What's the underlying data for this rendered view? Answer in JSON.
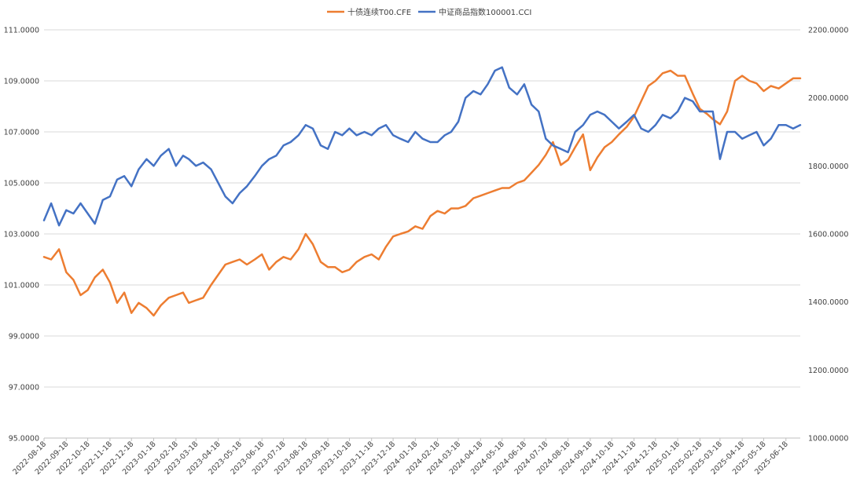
{
  "chart_data": {
    "type": "line",
    "title": "",
    "legend_position": "top",
    "grid": "horizontal",
    "y_left": {
      "ticks": [
        "111.0000",
        "109.0000",
        "107.0000",
        "105.0000",
        "103.0000",
        "101.0000",
        "99.0000",
        "97.0000",
        "95.0000"
      ],
      "min": 95,
      "max": 111
    },
    "y_right": {
      "ticks": [
        "2200.0000",
        "2000.0000",
        "1800.0000",
        "1600.0000",
        "1400.0000",
        "1200.0000",
        "1000.0000"
      ],
      "min": 1000,
      "max": 2200
    },
    "x_tick_labels": [
      "2022-08-18",
      "2022-09-18",
      "2022-10-18",
      "2022-11-18",
      "2022-12-18",
      "2023-01-18",
      "2023-02-18",
      "2023-03-18",
      "2023-04-18",
      "2023-05-18",
      "2023-06-18",
      "2023-07-18",
      "2023-08-18",
      "2023-09-18",
      "2023-10-18",
      "2023-11-18",
      "2023-12-18",
      "2024-01-18",
      "2024-02-18",
      "2024-03-18",
      "2024-04-18",
      "2024-05-18",
      "2024-06-18",
      "2024-07-18",
      "2024-08-18",
      "2024-09-18",
      "2024-10-18",
      "2024-11-18",
      "2024-12-18",
      "2025-01-18",
      "2025-02-18",
      "2025-03-18",
      "2025-04-18",
      "2025-05-18",
      "2025-06-18"
    ],
    "series": [
      {
        "name": "十债连续T00.CFE",
        "axis": "left",
        "color": "#ED7D31",
        "x": [
          "2022-08-18",
          "2022-08-28",
          "2022-09-08",
          "2022-09-18",
          "2022-09-28",
          "2022-10-08",
          "2022-10-18",
          "2022-10-28",
          "2022-11-08",
          "2022-11-18",
          "2022-11-28",
          "2022-12-08",
          "2022-12-18",
          "2022-12-28",
          "2023-01-08",
          "2023-01-18",
          "2023-01-28",
          "2023-02-08",
          "2023-02-18",
          "2023-02-28",
          "2023-03-08",
          "2023-03-18",
          "2023-03-28",
          "2023-04-08",
          "2023-04-18",
          "2023-04-28",
          "2023-05-08",
          "2023-05-18",
          "2023-05-28",
          "2023-06-08",
          "2023-06-18",
          "2023-06-28",
          "2023-07-08",
          "2023-07-18",
          "2023-07-28",
          "2023-08-08",
          "2023-08-18",
          "2023-08-28",
          "2023-09-08",
          "2023-09-18",
          "2023-09-28",
          "2023-10-08",
          "2023-10-18",
          "2023-10-28",
          "2023-11-08",
          "2023-11-18",
          "2023-11-28",
          "2023-12-08",
          "2023-12-18",
          "2023-12-28",
          "2024-01-08",
          "2024-01-18",
          "2024-01-28",
          "2024-02-08",
          "2024-02-18",
          "2024-02-28",
          "2024-03-08",
          "2024-03-18",
          "2024-03-28",
          "2024-04-08",
          "2024-04-18",
          "2024-04-28",
          "2024-05-08",
          "2024-05-18",
          "2024-05-28",
          "2024-06-08",
          "2024-06-18",
          "2024-06-28",
          "2024-07-08",
          "2024-07-18",
          "2024-07-28",
          "2024-08-08",
          "2024-08-18",
          "2024-08-28",
          "2024-09-08",
          "2024-09-18",
          "2024-09-28",
          "2024-10-08",
          "2024-10-18",
          "2024-10-28",
          "2024-11-08",
          "2024-11-18",
          "2024-11-28",
          "2024-12-08",
          "2024-12-18",
          "2024-12-28",
          "2025-01-08",
          "2025-01-18",
          "2025-01-28",
          "2025-02-08",
          "2025-02-18",
          "2025-02-28",
          "2025-03-08",
          "2025-03-18",
          "2025-03-28",
          "2025-04-08",
          "2025-04-18",
          "2025-04-28",
          "2025-05-08",
          "2025-05-18",
          "2025-05-28",
          "2025-06-08",
          "2025-06-18",
          "2025-06-28",
          "2025-07-08"
        ],
        "values": [
          102.1,
          102.0,
          102.4,
          101.5,
          101.2,
          100.6,
          100.8,
          101.3,
          101.6,
          101.1,
          100.3,
          100.7,
          99.9,
          100.3,
          100.1,
          99.8,
          100.2,
          100.5,
          100.6,
          100.7,
          100.3,
          100.4,
          100.5,
          101.0,
          101.4,
          101.8,
          101.9,
          102.0,
          101.8,
          102.0,
          102.2,
          101.6,
          101.9,
          102.1,
          102.0,
          102.4,
          103.0,
          102.6,
          101.9,
          101.7,
          101.7,
          101.5,
          101.6,
          101.9,
          102.1,
          102.2,
          102.0,
          102.5,
          102.9,
          103.0,
          103.1,
          103.3,
          103.2,
          103.7,
          103.9,
          103.8,
          104.0,
          104.0,
          104.1,
          104.4,
          104.5,
          104.6,
          104.7,
          104.8,
          104.8,
          105.0,
          105.1,
          105.4,
          105.7,
          106.1,
          106.6,
          105.7,
          105.9,
          106.4,
          106.9,
          105.5,
          106.0,
          106.4,
          106.6,
          106.9,
          107.2,
          107.6,
          108.2,
          108.8,
          109.0,
          109.3,
          109.4,
          109.2,
          109.2,
          108.5,
          107.9,
          107.7,
          107.5,
          107.3,
          107.8,
          109.0,
          109.2,
          109.0,
          108.9,
          108.6,
          108.8,
          108.7,
          108.9,
          109.1,
          109.1
        ]
      },
      {
        "name": "中证商品指数100001.CCI",
        "axis": "right",
        "color": "#4472C4",
        "x": [
          "2022-08-18",
          "2022-08-28",
          "2022-09-08",
          "2022-09-18",
          "2022-09-28",
          "2022-10-08",
          "2022-10-18",
          "2022-10-28",
          "2022-11-08",
          "2022-11-18",
          "2022-11-28",
          "2022-12-08",
          "2022-12-18",
          "2022-12-28",
          "2023-01-08",
          "2023-01-18",
          "2023-01-28",
          "2023-02-08",
          "2023-02-18",
          "2023-02-28",
          "2023-03-08",
          "2023-03-18",
          "2023-03-28",
          "2023-04-08",
          "2023-04-18",
          "2023-04-28",
          "2023-05-08",
          "2023-05-18",
          "2023-05-28",
          "2023-06-08",
          "2023-06-18",
          "2023-06-28",
          "2023-07-08",
          "2023-07-18",
          "2023-07-28",
          "2023-08-08",
          "2023-08-18",
          "2023-08-28",
          "2023-09-08",
          "2023-09-18",
          "2023-09-28",
          "2023-10-08",
          "2023-10-18",
          "2023-10-28",
          "2023-11-08",
          "2023-11-18",
          "2023-11-28",
          "2023-12-08",
          "2023-12-18",
          "2023-12-28",
          "2024-01-08",
          "2024-01-18",
          "2024-01-28",
          "2024-02-08",
          "2024-02-18",
          "2024-02-28",
          "2024-03-08",
          "2024-03-18",
          "2024-03-28",
          "2024-04-08",
          "2024-04-18",
          "2024-04-28",
          "2024-05-08",
          "2024-05-18",
          "2024-05-28",
          "2024-06-08",
          "2024-06-18",
          "2024-06-28",
          "2024-07-08",
          "2024-07-18",
          "2024-07-28",
          "2024-08-08",
          "2024-08-18",
          "2024-08-28",
          "2024-09-08",
          "2024-09-18",
          "2024-09-28",
          "2024-10-08",
          "2024-10-18",
          "2024-10-28",
          "2024-11-08",
          "2024-11-18",
          "2024-11-28",
          "2024-12-08",
          "2024-12-18",
          "2024-12-28",
          "2025-01-08",
          "2025-01-18",
          "2025-01-28",
          "2025-02-08",
          "2025-02-18",
          "2025-02-28",
          "2025-03-08",
          "2025-03-18",
          "2025-03-28",
          "2025-04-08",
          "2025-04-18",
          "2025-04-28",
          "2025-05-08",
          "2025-05-18",
          "2025-05-28",
          "2025-06-08",
          "2025-06-18",
          "2025-06-28",
          "2025-07-08"
        ],
        "values": [
          1640,
          1690,
          1625,
          1670,
          1660,
          1690,
          1660,
          1630,
          1700,
          1710,
          1760,
          1770,
          1740,
          1790,
          1820,
          1800,
          1830,
          1850,
          1800,
          1830,
          1820,
          1800,
          1810,
          1790,
          1750,
          1710,
          1690,
          1720,
          1740,
          1770,
          1800,
          1820,
          1830,
          1860,
          1870,
          1890,
          1920,
          1910,
          1860,
          1850,
          1900,
          1890,
          1910,
          1890,
          1900,
          1890,
          1910,
          1920,
          1890,
          1880,
          1870,
          1900,
          1880,
          1870,
          1870,
          1890,
          1900,
          1930,
          2000,
          2020,
          2010,
          2040,
          2080,
          2090,
          2030,
          2010,
          2040,
          1980,
          1960,
          1880,
          1860,
          1850,
          1840,
          1900,
          1920,
          1950,
          1960,
          1950,
          1930,
          1910,
          1930,
          1950,
          1910,
          1900,
          1920,
          1950,
          1940,
          1960,
          2000,
          1990,
          1960,
          1960,
          1960,
          1820,
          1900,
          1900,
          1880,
          1890,
          1900,
          1860,
          1880,
          1920,
          1920,
          1910,
          1920
        ]
      }
    ]
  }
}
